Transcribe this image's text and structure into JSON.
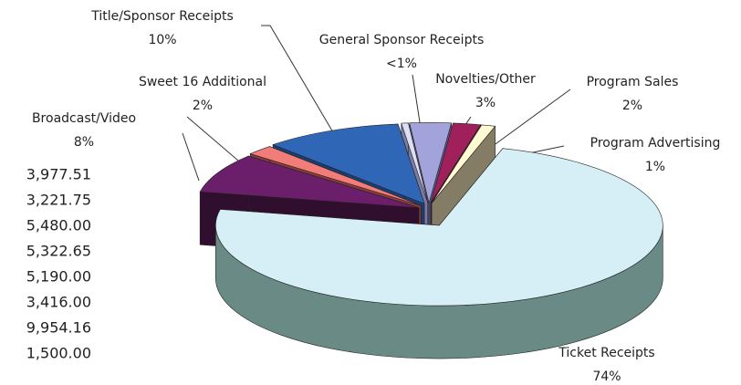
{
  "chart_data": {
    "type": "pie3d",
    "categories": [
      "Novelties/Other",
      "Program Sales",
      "Program Advertising",
      "Ticket Receipts",
      "Broadcast/Video",
      "Sweet 16 Additional",
      "Title/Sponsor Receipts",
      "General Sponsor Receipts"
    ],
    "values": [
      3,
      2,
      1,
      74,
      8,
      2,
      10,
      0.5
    ],
    "value_labels": [
      "3%",
      "2%",
      "1%",
      "74%",
      "8%",
      "2%",
      "10%",
      "<1%"
    ],
    "colors": [
      "#a3a3dc",
      "#a0205c",
      "#fffad2",
      "#d6eef5",
      "#6b1f6b",
      "#f27c78",
      "#2f66b6",
      "#dedef2"
    ],
    "side_colors": [
      "#5c5c92",
      "#5e1034",
      "#857c66",
      "#6a8a86",
      "#300f2e",
      "#8a3a3a",
      "#1d3e72",
      "#7a7aa2"
    ],
    "side_text": [
      "3,977.51",
      "3,221.75",
      "5,480.00",
      "5,322.65",
      "5,190.00",
      "3,416.00",
      "9,954.16",
      "1,500.00"
    ]
  }
}
